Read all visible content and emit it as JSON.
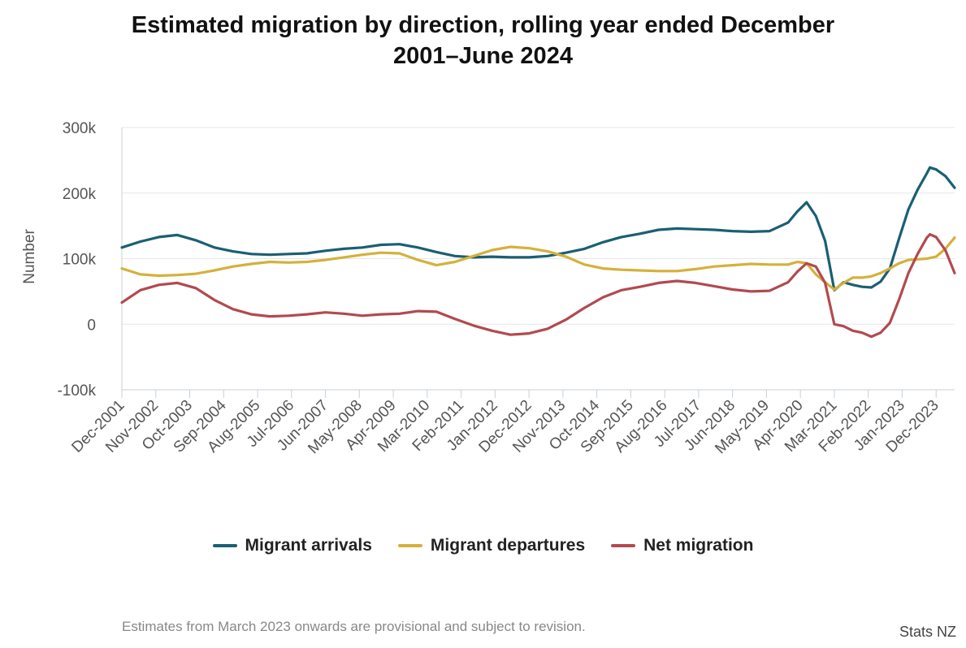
{
  "chart_data": {
    "type": "line",
    "title_line1": "Estimated migration by direction, rolling year ended December",
    "title_line2": "2001–June 2024",
    "ylabel": "Number",
    "xlabel": "",
    "ylim": [
      -100000,
      300000
    ],
    "yticks": [
      {
        "value": 300000,
        "label": "300k"
      },
      {
        "value": 200000,
        "label": "200k"
      },
      {
        "value": 100000,
        "label": "100k"
      },
      {
        "value": 0,
        "label": "0"
      },
      {
        "value": -100000,
        "label": "-100k"
      }
    ],
    "x_tick_labels": [
      "Dec-2001",
      "Nov-2002",
      "Oct-2003",
      "Sep-2004",
      "Aug-2005",
      "Jul-2006",
      "Jun-2007",
      "May-2008",
      "Apr-2009",
      "Mar-2010",
      "Feb-2011",
      "Jan-2012",
      "Dec-2012",
      "Nov-2013",
      "Oct-2014",
      "Sep-2015",
      "Aug-2016",
      "Jul-2017",
      "Jun-2018",
      "May-2019",
      "Apr-2020",
      "Mar-2021",
      "Feb-2022",
      "Jan-2023",
      "Dec-2023"
    ],
    "x_range": [
      "Dec-2001",
      "Jun-2024"
    ],
    "grid": true,
    "legend_position": "bottom",
    "series": [
      {
        "name": "Migrant arrivals",
        "color": "#1a5f73",
        "points": [
          [
            "Dec-2001",
            117000
          ],
          [
            "Jun-2002",
            126000
          ],
          [
            "Dec-2002",
            133000
          ],
          [
            "Jun-2003",
            136000
          ],
          [
            "Dec-2003",
            128000
          ],
          [
            "Jun-2004",
            117000
          ],
          [
            "Dec-2004",
            111000
          ],
          [
            "Jun-2005",
            107000
          ],
          [
            "Dec-2005",
            106000
          ],
          [
            "Jun-2006",
            107000
          ],
          [
            "Dec-2006",
            108000
          ],
          [
            "Jun-2007",
            112000
          ],
          [
            "Dec-2007",
            115000
          ],
          [
            "Jun-2008",
            117000
          ],
          [
            "Dec-2008",
            121000
          ],
          [
            "Jun-2009",
            122000
          ],
          [
            "Dec-2009",
            117000
          ],
          [
            "Jun-2010",
            110000
          ],
          [
            "Dec-2010",
            104000
          ],
          [
            "Jun-2011",
            102000
          ],
          [
            "Dec-2011",
            103000
          ],
          [
            "Jun-2012",
            102000
          ],
          [
            "Dec-2012",
            102000
          ],
          [
            "Jun-2013",
            104000
          ],
          [
            "Dec-2013",
            109000
          ],
          [
            "Jun-2014",
            115000
          ],
          [
            "Dec-2014",
            125000
          ],
          [
            "Jun-2015",
            133000
          ],
          [
            "Dec-2015",
            138000
          ],
          [
            "Jun-2016",
            144000
          ],
          [
            "Dec-2016",
            146000
          ],
          [
            "Jun-2017",
            145000
          ],
          [
            "Dec-2017",
            144000
          ],
          [
            "Jun-2018",
            142000
          ],
          [
            "Dec-2018",
            141000
          ],
          [
            "Jun-2019",
            142000
          ],
          [
            "Dec-2019",
            155000
          ],
          [
            "Mar-2020",
            172000
          ],
          [
            "Jun-2020",
            186000
          ],
          [
            "Sep-2020",
            165000
          ],
          [
            "Dec-2020",
            127000
          ],
          [
            "Mar-2021",
            52000
          ],
          [
            "Jun-2021",
            64000
          ],
          [
            "Sep-2021",
            60000
          ],
          [
            "Dec-2021",
            57000
          ],
          [
            "Mar-2022",
            56000
          ],
          [
            "Jun-2022",
            65000
          ],
          [
            "Sep-2022",
            85000
          ],
          [
            "Dec-2022",
            131000
          ],
          [
            "Mar-2023",
            175000
          ],
          [
            "Jun-2023",
            205000
          ],
          [
            "Sep-2023",
            230000
          ],
          [
            "Oct-2023",
            239000
          ],
          [
            "Dec-2023",
            236000
          ],
          [
            "Mar-2024",
            226000
          ],
          [
            "Jun-2024",
            208000
          ]
        ]
      },
      {
        "name": "Migrant departures",
        "color": "#d4b13a",
        "points": [
          [
            "Dec-2001",
            85000
          ],
          [
            "Jun-2002",
            76000
          ],
          [
            "Dec-2002",
            74000
          ],
          [
            "Jun-2003",
            75000
          ],
          [
            "Dec-2003",
            77000
          ],
          [
            "Jun-2004",
            82000
          ],
          [
            "Dec-2004",
            88000
          ],
          [
            "Jun-2005",
            92000
          ],
          [
            "Dec-2005",
            95000
          ],
          [
            "Jun-2006",
            94000
          ],
          [
            "Dec-2006",
            95000
          ],
          [
            "Jun-2007",
            98000
          ],
          [
            "Dec-2007",
            102000
          ],
          [
            "Jun-2008",
            106000
          ],
          [
            "Dec-2008",
            109000
          ],
          [
            "Jun-2009",
            108000
          ],
          [
            "Dec-2009",
            98000
          ],
          [
            "Jun-2010",
            90000
          ],
          [
            "Dec-2010",
            95000
          ],
          [
            "Jun-2011",
            104000
          ],
          [
            "Dec-2011",
            113000
          ],
          [
            "Jun-2012",
            118000
          ],
          [
            "Dec-2012",
            116000
          ],
          [
            "Jun-2013",
            111000
          ],
          [
            "Dec-2013",
            103000
          ],
          [
            "Jun-2014",
            91000
          ],
          [
            "Dec-2014",
            85000
          ],
          [
            "Jun-2015",
            83000
          ],
          [
            "Dec-2015",
            82000
          ],
          [
            "Jun-2016",
            81000
          ],
          [
            "Dec-2016",
            81000
          ],
          [
            "Jun-2017",
            84000
          ],
          [
            "Dec-2017",
            88000
          ],
          [
            "Jun-2018",
            90000
          ],
          [
            "Dec-2018",
            92000
          ],
          [
            "Jun-2019",
            91000
          ],
          [
            "Dec-2019",
            91000
          ],
          [
            "Mar-2020",
            95000
          ],
          [
            "Jun-2020",
            93000
          ],
          [
            "Sep-2020",
            76000
          ],
          [
            "Dec-2020",
            64000
          ],
          [
            "Mar-2021",
            53000
          ],
          [
            "Jun-2021",
            63000
          ],
          [
            "Sep-2021",
            71000
          ],
          [
            "Dec-2021",
            71000
          ],
          [
            "Mar-2022",
            73000
          ],
          [
            "Jun-2022",
            78000
          ],
          [
            "Sep-2022",
            85000
          ],
          [
            "Dec-2022",
            93000
          ],
          [
            "Mar-2023",
            98000
          ],
          [
            "Jun-2023",
            99000
          ],
          [
            "Sep-2023",
            100000
          ],
          [
            "Dec-2023",
            103000
          ],
          [
            "Mar-2024",
            115000
          ],
          [
            "Jun-2024",
            132000
          ]
        ]
      },
      {
        "name": "Net migration",
        "color": "#b24a4f",
        "points": [
          [
            "Dec-2001",
            33000
          ],
          [
            "Jun-2002",
            52000
          ],
          [
            "Dec-2002",
            60000
          ],
          [
            "Jun-2003",
            63000
          ],
          [
            "Dec-2003",
            55000
          ],
          [
            "Jun-2004",
            37000
          ],
          [
            "Dec-2004",
            23000
          ],
          [
            "Jun-2005",
            15000
          ],
          [
            "Dec-2005",
            12000
          ],
          [
            "Jun-2006",
            13000
          ],
          [
            "Dec-2006",
            15000
          ],
          [
            "Jun-2007",
            18000
          ],
          [
            "Dec-2007",
            16000
          ],
          [
            "Jun-2008",
            13000
          ],
          [
            "Dec-2008",
            15000
          ],
          [
            "Jun-2009",
            16000
          ],
          [
            "Dec-2009",
            20000
          ],
          [
            "Jun-2010",
            19000
          ],
          [
            "Dec-2010",
            8000
          ],
          [
            "Jun-2011",
            -2000
          ],
          [
            "Dec-2011",
            -10000
          ],
          [
            "Jun-2012",
            -16000
          ],
          [
            "Dec-2012",
            -14000
          ],
          [
            "Jun-2013",
            -7000
          ],
          [
            "Dec-2013",
            7000
          ],
          [
            "Jun-2014",
            25000
          ],
          [
            "Dec-2014",
            41000
          ],
          [
            "Jun-2015",
            52000
          ],
          [
            "Dec-2015",
            57000
          ],
          [
            "Jun-2016",
            63000
          ],
          [
            "Dec-2016",
            66000
          ],
          [
            "Jun-2017",
            63000
          ],
          [
            "Dec-2017",
            58000
          ],
          [
            "Jun-2018",
            53000
          ],
          [
            "Dec-2018",
            50000
          ],
          [
            "Jun-2019",
            51000
          ],
          [
            "Dec-2019",
            64000
          ],
          [
            "Mar-2020",
            80000
          ],
          [
            "Jun-2020",
            93000
          ],
          [
            "Sep-2020",
            88000
          ],
          [
            "Dec-2020",
            63000
          ],
          [
            "Mar-2021",
            0
          ],
          [
            "Jun-2021",
            -3000
          ],
          [
            "Sep-2021",
            -10000
          ],
          [
            "Dec-2021",
            -13000
          ],
          [
            "Mar-2022",
            -19000
          ],
          [
            "Jun-2022",
            -13000
          ],
          [
            "Sep-2022",
            2000
          ],
          [
            "Dec-2022",
            38000
          ],
          [
            "Mar-2023",
            78000
          ],
          [
            "Jun-2023",
            107000
          ],
          [
            "Sep-2023",
            132000
          ],
          [
            "Oct-2023",
            137000
          ],
          [
            "Dec-2023",
            133000
          ],
          [
            "Mar-2024",
            113000
          ],
          [
            "Jun-2024",
            78000
          ]
        ]
      }
    ]
  },
  "footnote": "Estimates from March 2023 onwards are provisional and subject to revision.",
  "credit": "Stats NZ"
}
